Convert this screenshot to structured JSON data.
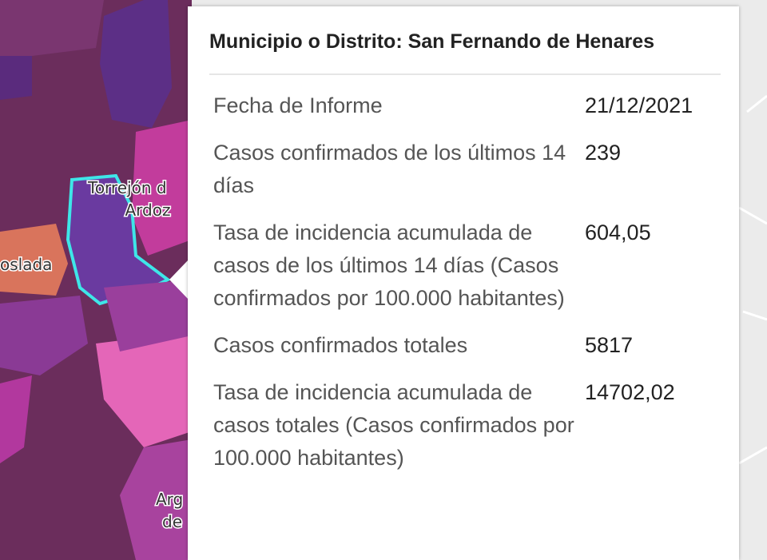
{
  "map": {
    "labels": [
      "Torrejón d",
      "Ardoz",
      "oslada",
      "Arg",
      "de"
    ]
  },
  "popup": {
    "title": "Municipio o Distrito: San Fernando de Henares",
    "rows": [
      {
        "label": "Fecha de Informe",
        "value": "21/12/2021"
      },
      {
        "label": "Casos confirmados de los últimos 14 días",
        "value": "239"
      },
      {
        "label": "Tasa de incidencia acumulada de casos de los últimos 14 días (Casos confirmados por 100.000 habitantes)",
        "value": "604,05"
      },
      {
        "label": "Casos confirmados totales",
        "value": "5817"
      },
      {
        "label": "Tasa de incidencia acumulada de casos totales (Casos confirmados por 100.000 habitantes)",
        "value": "14702,02"
      }
    ]
  }
}
